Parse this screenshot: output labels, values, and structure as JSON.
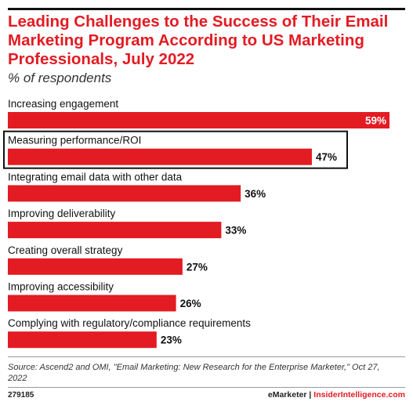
{
  "header": {
    "title": "Leading Challenges to the Success of Their Email Marketing Program According to US Marketing Professionals, July 2022",
    "subtitle": "% of respondents"
  },
  "chart_data": {
    "type": "bar",
    "orientation": "horizontal",
    "categories": [
      "Increasing engagement",
      "Measuring performance/ROI",
      "Integrating email data with other data",
      "Improving deliverability",
      "Creating overall strategy",
      "Improving accessibility",
      "Complying with regulatory/compliance requirements"
    ],
    "values": [
      59,
      47,
      36,
      33,
      27,
      26,
      23
    ],
    "value_labels": [
      "59%",
      "47%",
      "36%",
      "33%",
      "27%",
      "26%",
      "23%"
    ],
    "highlighted_index": 1,
    "bar_color": "#e31b23",
    "highlight_border_color": "#111111",
    "xlim": [
      0,
      59
    ],
    "grid": false,
    "legend": "none"
  },
  "footer": {
    "source": "Source: Ascend2 and OMI, \"Email Marketing: New Research for the Enterprise Marketer,\" Oct 27, 2022",
    "chart_id": "279185",
    "brand": "eMarketer",
    "separator": "|",
    "site": "InsiderIntelligence.com"
  }
}
